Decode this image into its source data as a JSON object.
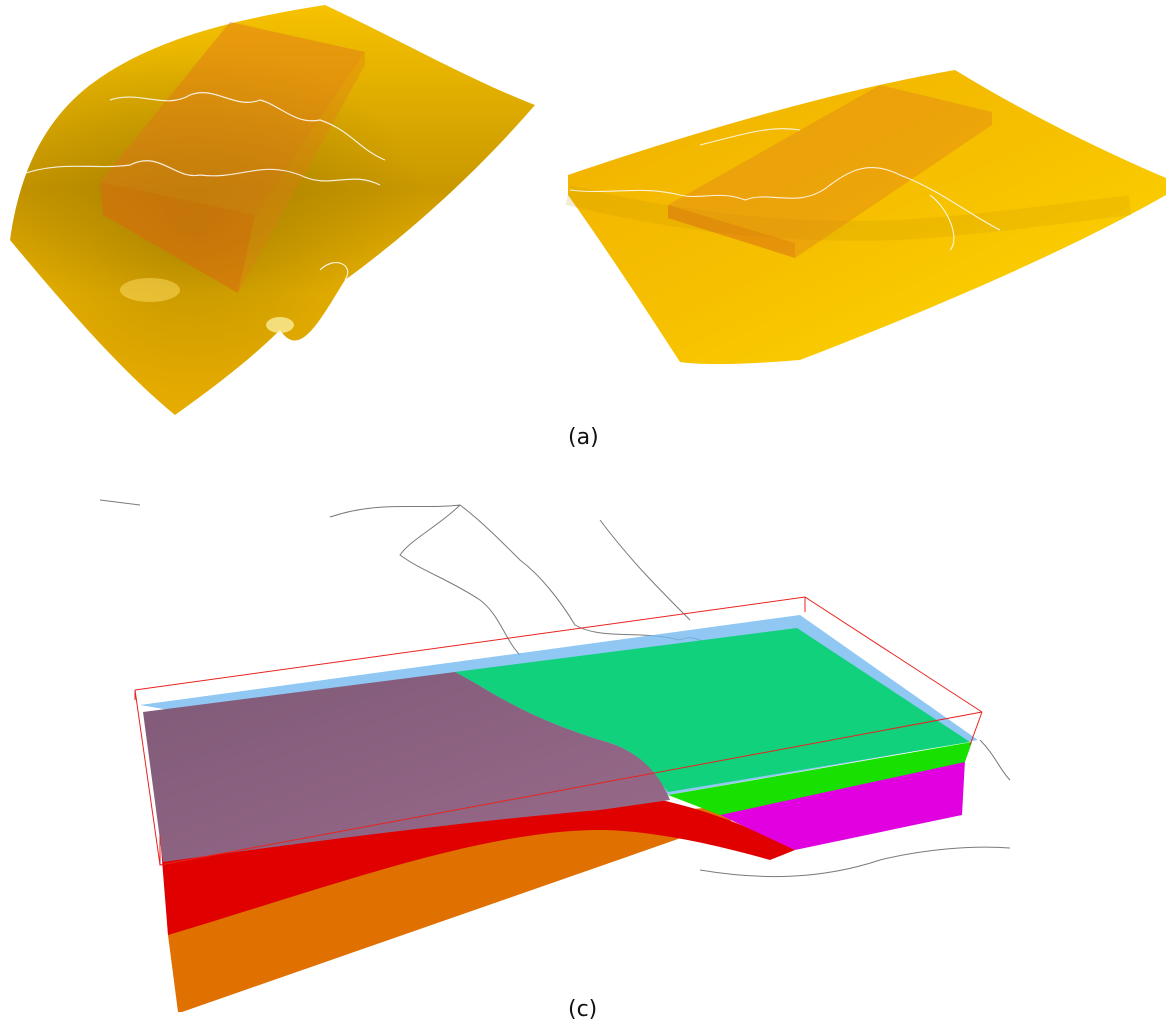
{
  "captions": {
    "a": "(a)",
    "c": "(c)"
  },
  "colors": {
    "surface_yellow": "#f2b400",
    "surface_dark": "#a57a00",
    "box_orange": "#e07a10",
    "wireframe_red": "#e8231f",
    "layer_water_blue": "#74b9f0",
    "layer_green": "#12d17c",
    "layer_bright_green": "#18e000",
    "layer_purple": "#8c5a7c",
    "layer_red": "#e00000",
    "layer_orange": "#e07000",
    "layer_magenta": "#e000e0",
    "coastline": "#888888"
  }
}
